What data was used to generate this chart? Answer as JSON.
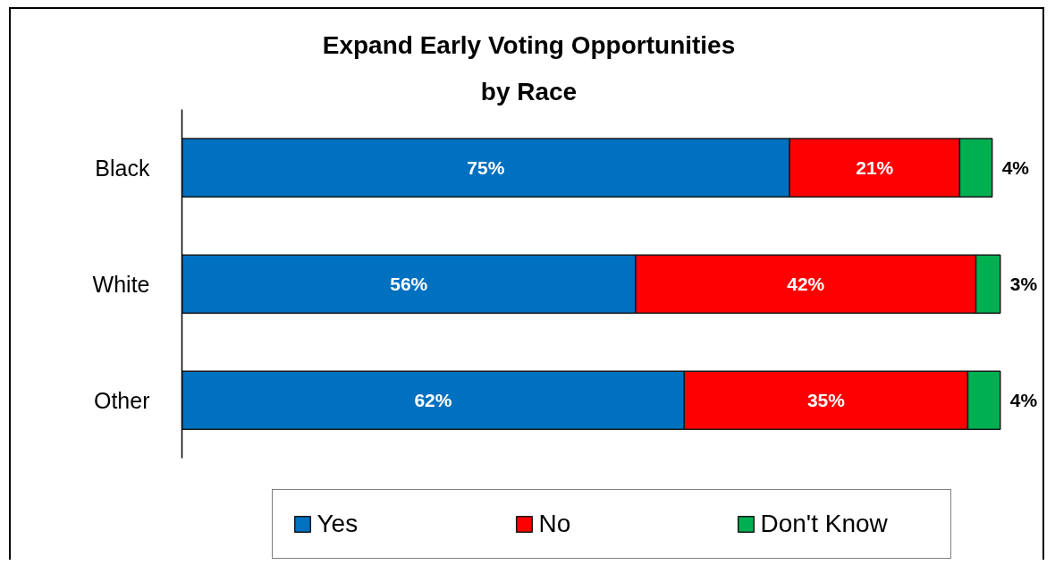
{
  "chart_data": {
    "type": "bar",
    "orientation": "horizontal",
    "stacked": true,
    "title": "Expand Early Voting Opportunities\nby Race",
    "categories": [
      "Black",
      "White",
      "Other"
    ],
    "series": [
      {
        "name": "Yes",
        "color": "#0070c0",
        "values": [
          75,
          56,
          62
        ],
        "value_labels": [
          "75%",
          "56%",
          "62%"
        ]
      },
      {
        "name": "No",
        "color": "#ff0000",
        "values": [
          21,
          42,
          35
        ],
        "value_labels": [
          "21%",
          "42%",
          "35%"
        ]
      },
      {
        "name": "Don't Know",
        "color": "#00b050",
        "values": [
          4,
          3,
          4
        ],
        "value_labels": [
          "4%",
          "3%",
          "4%"
        ]
      }
    ],
    "legend": "bottom",
    "tick_labels": "y"
  }
}
